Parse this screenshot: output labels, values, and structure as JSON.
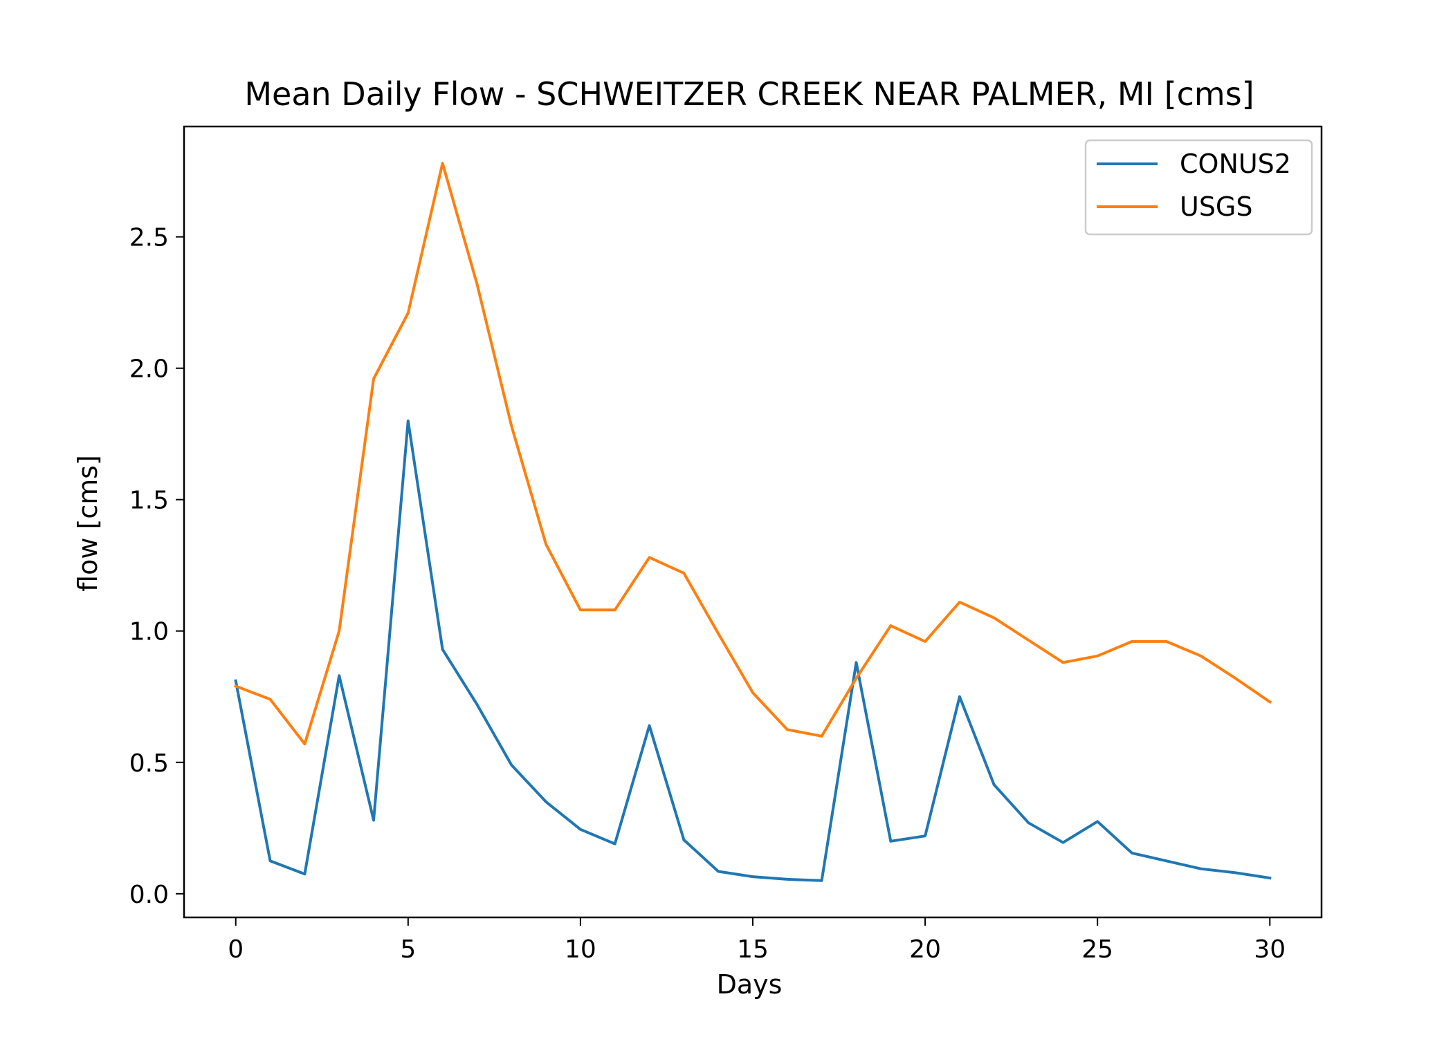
{
  "chart_data": {
    "type": "line",
    "title": "Mean Daily Flow - SCHWEITZER CREEK NEAR PALMER, MI [cms]",
    "xlabel": "Days",
    "ylabel": "flow [cms]",
    "xlim": [
      -1.5,
      31.5
    ],
    "ylim": [
      -0.09,
      2.92
    ],
    "xticks": [
      0,
      5,
      10,
      15,
      20,
      25,
      30
    ],
    "yticks": [
      0.0,
      0.5,
      1.0,
      1.5,
      2.0,
      2.5
    ],
    "xtick_labels": [
      "0",
      "5",
      "10",
      "15",
      "20",
      "25",
      "30"
    ],
    "ytick_labels": [
      "0.0",
      "0.5",
      "1.0",
      "1.5",
      "2.0",
      "2.5"
    ],
    "grid": false,
    "legend": "top-right",
    "x": [
      0,
      1,
      2,
      3,
      4,
      5,
      6,
      7,
      8,
      9,
      10,
      11,
      12,
      13,
      14,
      15,
      16,
      17,
      18,
      19,
      20,
      21,
      22,
      23,
      24,
      25,
      26,
      27,
      28,
      29,
      30
    ],
    "series": [
      {
        "name": "CONUS2",
        "color": "#1f77b4",
        "values": [
          0.81,
          0.125,
          0.075,
          0.83,
          0.28,
          1.8,
          0.93,
          0.72,
          0.49,
          0.35,
          0.245,
          0.19,
          0.64,
          0.205,
          0.085,
          0.065,
          0.055,
          0.05,
          0.88,
          0.2,
          0.22,
          0.75,
          0.415,
          0.27,
          0.195,
          0.275,
          0.155,
          0.125,
          0.095,
          0.08,
          0.06
        ]
      },
      {
        "name": "USGS",
        "color": "#ff7f0e",
        "values": [
          0.79,
          0.74,
          0.57,
          1.0,
          1.96,
          2.21,
          2.78,
          2.32,
          1.78,
          1.33,
          1.08,
          1.08,
          1.28,
          1.22,
          0.99,
          0.765,
          0.625,
          0.6,
          0.82,
          1.02,
          0.96,
          1.11,
          1.05,
          0.965,
          0.88,
          0.905,
          0.96,
          0.96,
          0.905,
          0.82,
          0.73
        ]
      }
    ]
  }
}
